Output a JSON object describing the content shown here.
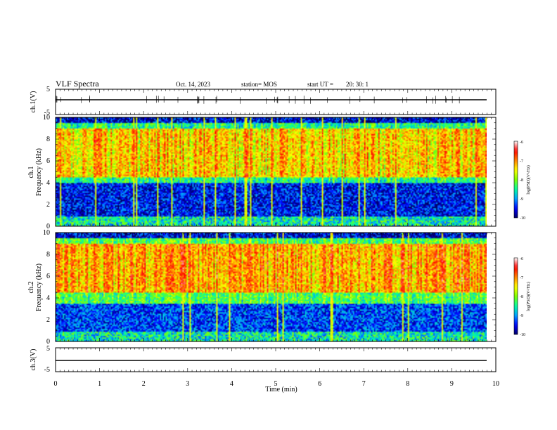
{
  "header": {
    "title": "VLF Spectra",
    "date": "Oct. 14, 2023",
    "station": "station= MOS",
    "start_label": "start  UT =",
    "start_time": "20: 30: 1"
  },
  "chart_data": [
    {
      "type": "line",
      "panel": "ch1-waveform",
      "ylabel": "ch.1(V)",
      "ylim": [
        -5,
        5
      ],
      "yticks": [
        "5",
        "-5"
      ],
      "xlim": [
        0,
        10
      ],
      "series": [
        {
          "x": [
            0,
            9.85
          ],
          "y": [
            0,
            0
          ]
        }
      ]
    },
    {
      "type": "heatmap",
      "panel": "ch1-spectrogram",
      "ylabel": "ch.1\nFrequency (kHz)",
      "ylim": [
        0,
        10
      ],
      "yticks": [
        "0",
        "2",
        "4",
        "6",
        "8",
        "10"
      ],
      "xlim": [
        0,
        10
      ],
      "data_extent_x": [
        0,
        9.85
      ],
      "colorbar": {
        "label": "log(PSD)(V²/Hz)",
        "ticks": [
          "-6",
          "-7",
          "-8",
          "-9",
          "-10"
        ],
        "range": [
          -10,
          -6
        ]
      },
      "description_profile": {
        "peak_khz": [
          4.5,
          9.0
        ],
        "peak_value": -6.8,
        "low_band_khz": [
          1.0,
          4.0
        ],
        "low_value": -9.5
      }
    },
    {
      "type": "heatmap",
      "panel": "ch2-spectrogram",
      "ylabel": "ch.2\nFrequency (kHz)",
      "ylim": [
        0,
        10
      ],
      "yticks": [
        "0",
        "2",
        "4",
        "6",
        "8",
        "10"
      ],
      "xlim": [
        0,
        10
      ],
      "data_extent_x": [
        0,
        9.85
      ],
      "colorbar": {
        "label": "log(PSD)(V²/Hz)",
        "ticks": [
          "-6",
          "-7",
          "-8",
          "-9",
          "-10"
        ],
        "range": [
          -10,
          -6
        ]
      },
      "description_profile": {
        "peak_khz": [
          4.5,
          9.0
        ],
        "peak_value": -6.6,
        "low_band_khz": [
          1.0,
          3.5
        ],
        "low_value": -9.3
      }
    },
    {
      "type": "line",
      "panel": "ch3-waveform",
      "ylabel": "ch.3(V)",
      "ylim": [
        -5,
        5
      ],
      "yticks": [
        "5",
        "-5"
      ],
      "xlim": [
        0,
        10
      ],
      "xlabel": "Time  (min)",
      "xticks": [
        "0",
        "1",
        "2",
        "3",
        "4",
        "5",
        "6",
        "7",
        "8",
        "9",
        "10"
      ],
      "series": [
        {
          "x": [
            0,
            9.85
          ],
          "y": [
            0,
            0
          ]
        }
      ]
    }
  ],
  "colors": {
    "colormap": [
      "#000066",
      "#0000ff",
      "#00a0ff",
      "#00ffa0",
      "#80ff00",
      "#ffff00",
      "#ff8000",
      "#ff0000",
      "#ffffff"
    ]
  }
}
